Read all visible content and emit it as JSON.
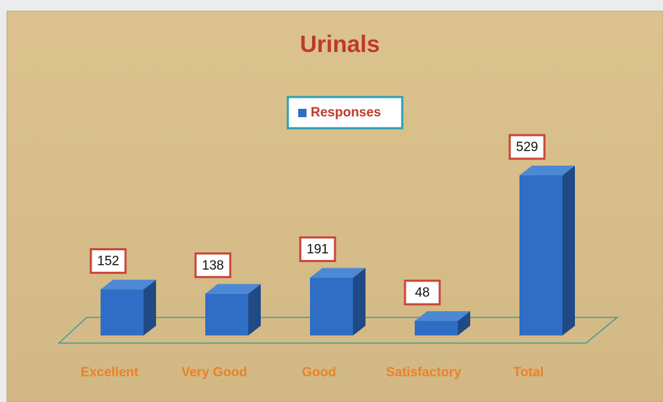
{
  "chart_data": {
    "type": "bar",
    "title": "Urinals",
    "categories": [
      "Excellent",
      "Very Good",
      "Good",
      "Satisfactory",
      "Total"
    ],
    "series": [
      {
        "name": "Responses",
        "color": "#2f6ec4",
        "values": [
          152,
          138,
          191,
          48,
          529
        ]
      }
    ]
  }
}
